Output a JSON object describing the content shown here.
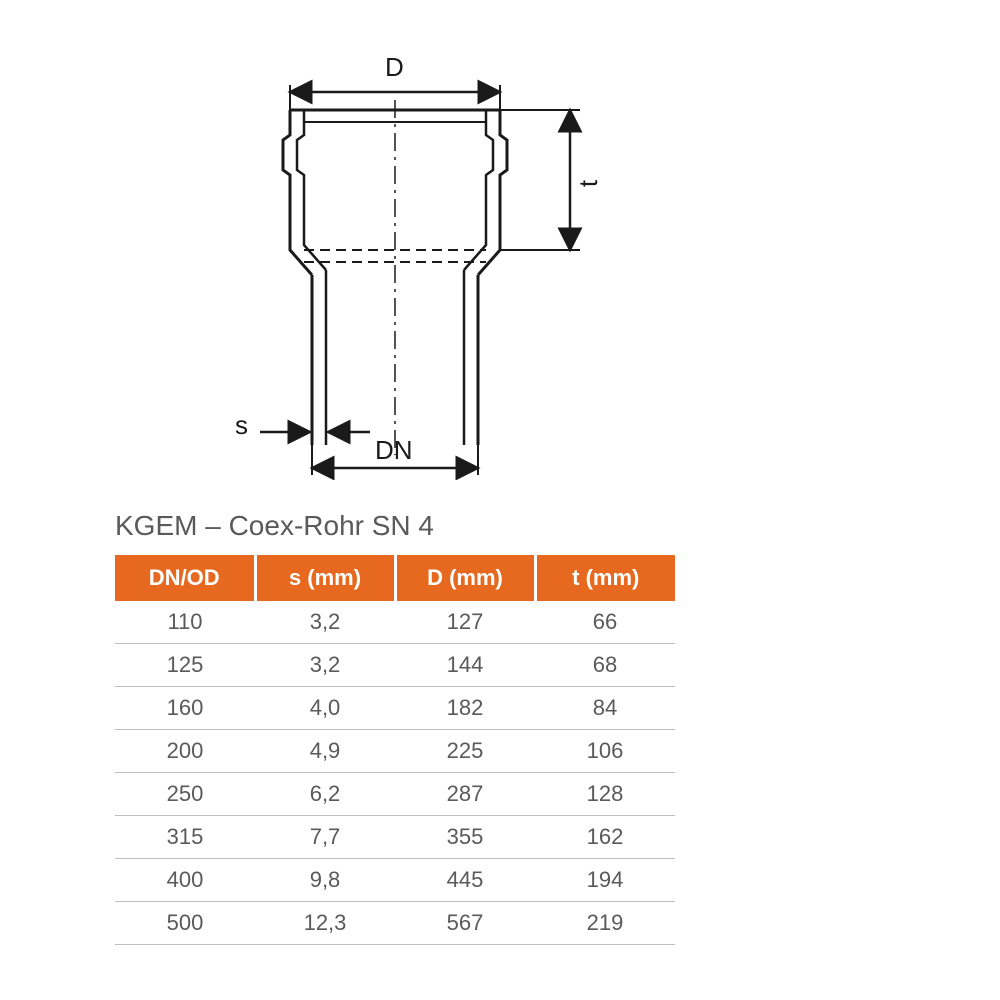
{
  "title": "KGEM – Coex-Rohr SN 4",
  "diagram": {
    "labels": {
      "D": "D",
      "t": "t",
      "s": "s",
      "DN": "DN"
    },
    "stroke_color": "#1a1a1a",
    "stroke_width": 2.5,
    "background_color": "#ffffff",
    "label_fontsize": 26,
    "label_color": "#1a1a1a",
    "socket_outer_width": 210,
    "socket_height": 160,
    "pipe_width": 165,
    "pipe_height": 190,
    "wall_thickness": 14
  },
  "table": {
    "header_bg": "#e6691f",
    "header_fg": "#ffffff",
    "row_border": "#bfbfbf",
    "cell_fg": "#5a5a5a",
    "fontsize": 22,
    "columns": [
      "DN/OD",
      "s (mm)",
      "D (mm)",
      "t (mm)"
    ],
    "rows": [
      [
        "110",
        "3,2",
        "127",
        "66"
      ],
      [
        "125",
        "3,2",
        "144",
        "68"
      ],
      [
        "160",
        "4,0",
        "182",
        "84"
      ],
      [
        "200",
        "4,9",
        "225",
        "106"
      ],
      [
        "250",
        "6,2",
        "287",
        "128"
      ],
      [
        "315",
        "7,7",
        "355",
        "162"
      ],
      [
        "400",
        "9,8",
        "445",
        "194"
      ],
      [
        "500",
        "12,3",
        "567",
        "219"
      ]
    ]
  }
}
